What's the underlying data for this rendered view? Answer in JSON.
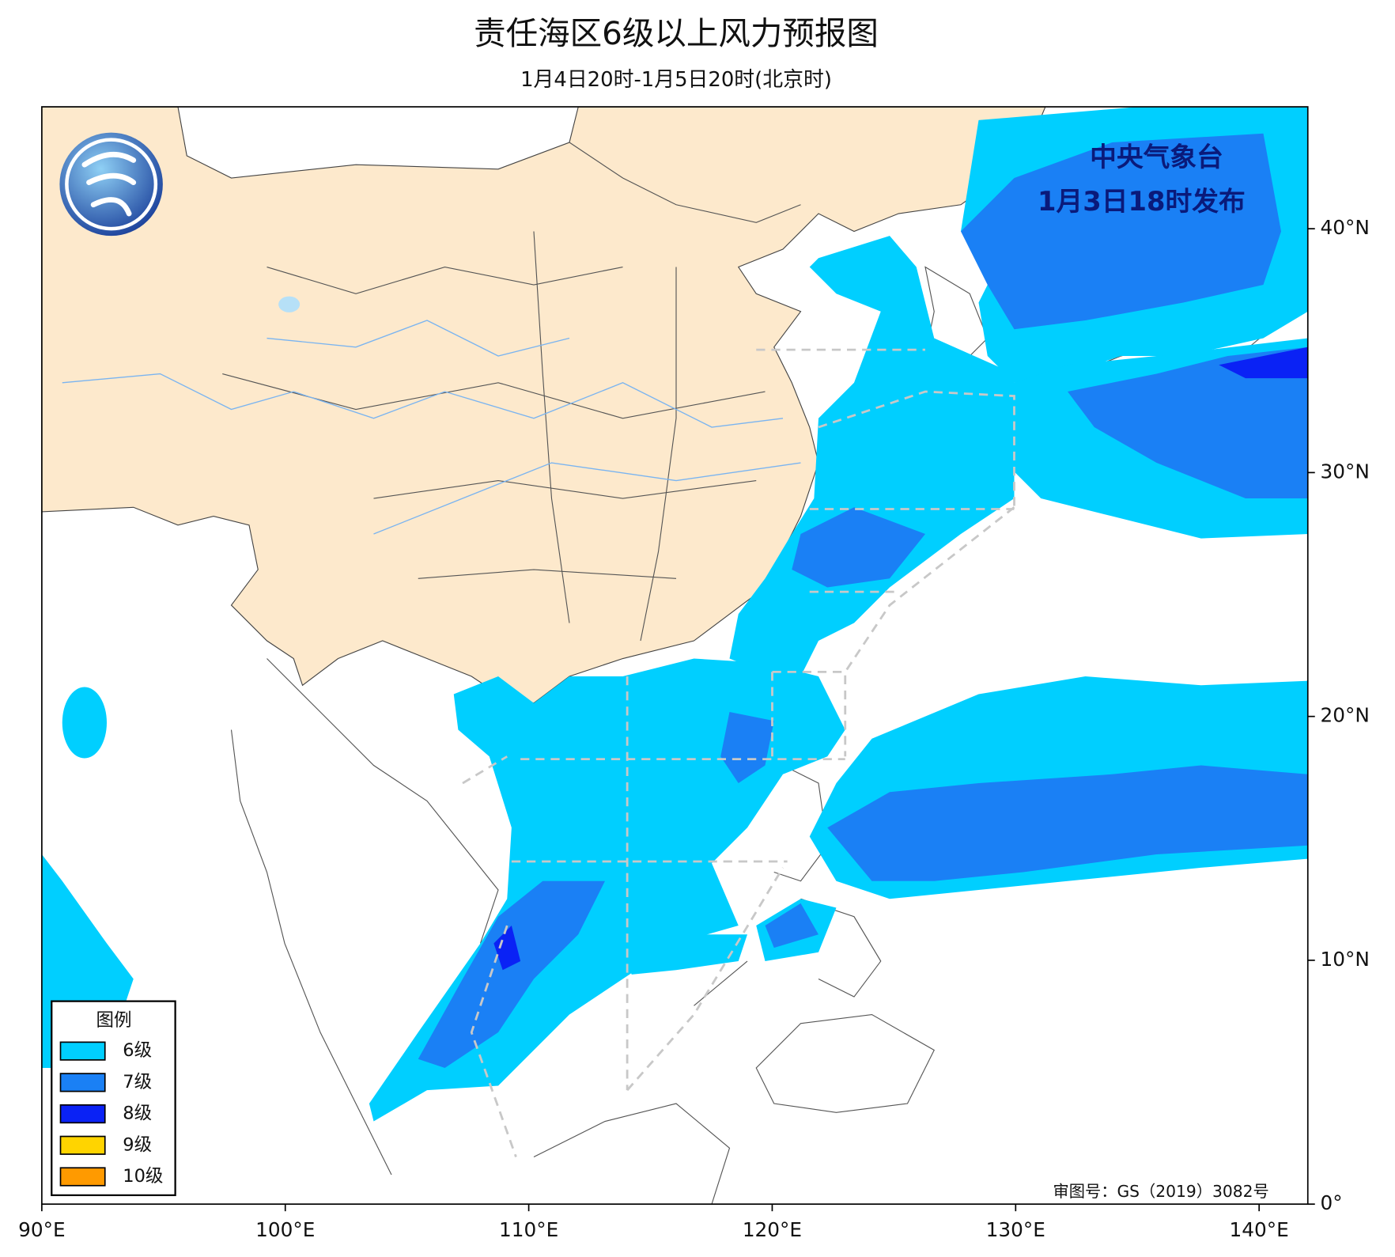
{
  "header": {
    "title": "责任海区6级以上风力预报图",
    "subtitle": "1月4日20时-1月5日20时(北京时)"
  },
  "issuer": {
    "name": "中央气象台",
    "issued": "1月3日18时发布"
  },
  "map": {
    "xlim": [
      90,
      142
    ],
    "ylim": [
      0,
      45
    ],
    "xticks": [
      {
        "value": 90,
        "label": "90°E"
      },
      {
        "value": 100,
        "label": "100°E"
      },
      {
        "value": 110,
        "label": "110°E"
      },
      {
        "value": 120,
        "label": "120°E"
      },
      {
        "value": 130,
        "label": "130°E"
      },
      {
        "value": 140,
        "label": "140°E"
      }
    ],
    "yticks": [
      {
        "value": 0,
        "label": "0°"
      },
      {
        "value": 10,
        "label": "10°N"
      },
      {
        "value": 20,
        "label": "20°N"
      },
      {
        "value": 30,
        "label": "30°N"
      },
      {
        "value": 40,
        "label": "40°N"
      }
    ]
  },
  "legend": {
    "title": "图例",
    "items": [
      {
        "label": "6级",
        "color": "#00cfff"
      },
      {
        "label": "7级",
        "color": "#1a80f5"
      },
      {
        "label": "8级",
        "color": "#0a22f5"
      },
      {
        "label": "9级",
        "color": "#ffd400"
      },
      {
        "label": "10级",
        "color": "#ff9a00"
      }
    ]
  },
  "approval": "审图号：GS（2019）3082号"
}
